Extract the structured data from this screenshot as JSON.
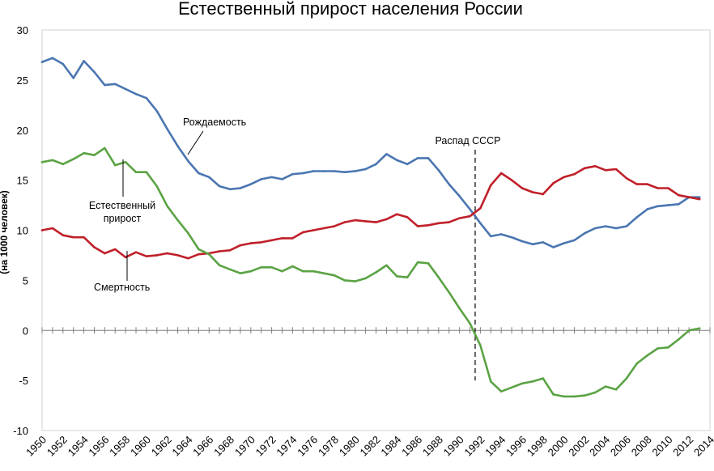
{
  "chart_data": {
    "type": "line",
    "title": "Естественный прирост населения России",
    "ylabel": "(на 1000 человек)",
    "xlim": [
      1950,
      2014
    ],
    "ylim": [
      -10,
      30
    ],
    "yticks": [
      "30",
      "25",
      "20",
      "15",
      "10",
      "5",
      "0",
      "-5",
      "-10"
    ],
    "ytick_values": [
      30,
      25,
      20,
      15,
      10,
      5,
      0,
      -5,
      -10
    ],
    "xticks": [
      "1950",
      "1952",
      "1954",
      "1956",
      "1958",
      "1960",
      "1962",
      "1964",
      "1966",
      "1968",
      "1970",
      "1972",
      "1974",
      "1976",
      "1978",
      "1980",
      "1982",
      "1984",
      "1986",
      "1988",
      "1990",
      "1992",
      "1994",
      "1996",
      "1998",
      "2000",
      "2002",
      "2004",
      "2006",
      "2008",
      "2010",
      "2012",
      "2014"
    ],
    "xtick_values": [
      1950,
      1952,
      1954,
      1956,
      1958,
      1960,
      1962,
      1964,
      1966,
      1968,
      1970,
      1972,
      1974,
      1976,
      1978,
      1980,
      1982,
      1984,
      1986,
      1988,
      1990,
      1992,
      1994,
      1996,
      1998,
      2000,
      2002,
      2004,
      2006,
      2008,
      2010,
      2012,
      2014
    ],
    "grid": false,
    "colors": {
      "birth": "#4a76b1",
      "death": "#c0202a",
      "natural": "#5ba344"
    },
    "x": [
      1950,
      1951,
      1952,
      1953,
      1954,
      1955,
      1956,
      1957,
      1958,
      1959,
      1960,
      1961,
      1962,
      1963,
      1964,
      1965,
      1966,
      1967,
      1968,
      1969,
      1970,
      1971,
      1972,
      1973,
      1974,
      1975,
      1976,
      1977,
      1978,
      1979,
      1980,
      1981,
      1982,
      1983,
      1984,
      1985,
      1986,
      1987,
      1988,
      1989,
      1990,
      1991,
      1992,
      1993,
      1994,
      1995,
      1996,
      1997,
      1998,
      1999,
      2000,
      2001,
      2002,
      2003,
      2004,
      2005,
      2006,
      2007,
      2008,
      2009,
      2010,
      2011,
      2012,
      2013
    ],
    "series": [
      {
        "key": "birth",
        "values": [
          26.8,
          27.2,
          26.6,
          25.2,
          26.9,
          25.8,
          24.5,
          24.6,
          24.1,
          23.6,
          23.2,
          21.9,
          20.1,
          18.4,
          16.9,
          15.7,
          15.3,
          14.4,
          14.1,
          14.2,
          14.6,
          15.1,
          15.3,
          15.1,
          15.6,
          15.7,
          15.9,
          15.9,
          15.9,
          15.8,
          15.9,
          16.1,
          16.6,
          17.6,
          17.0,
          16.6,
          17.2,
          17.2,
          16.0,
          14.6,
          13.4,
          12.1,
          10.7,
          9.4,
          9.6,
          9.3,
          8.9,
          8.6,
          8.8,
          8.3,
          8.7,
          9.0,
          9.7,
          10.2,
          10.4,
          10.2,
          10.4,
          11.3,
          12.1,
          12.4,
          12.5,
          12.6,
          13.3,
          13.3
        ]
      },
      {
        "key": "death",
        "values": [
          10.0,
          10.2,
          9.5,
          9.3,
          9.3,
          8.3,
          7.7,
          8.1,
          7.3,
          7.8,
          7.4,
          7.5,
          7.7,
          7.5,
          7.2,
          7.6,
          7.7,
          7.9,
          8.0,
          8.5,
          8.7,
          8.8,
          9.0,
          9.2,
          9.2,
          9.8,
          10.0,
          10.2,
          10.4,
          10.8,
          11.0,
          10.9,
          10.8,
          11.1,
          11.6,
          11.3,
          10.4,
          10.5,
          10.7,
          10.8,
          11.2,
          11.4,
          12.2,
          14.5,
          15.7,
          15.0,
          14.2,
          13.8,
          13.6,
          14.7,
          15.3,
          15.6,
          16.2,
          16.4,
          16.0,
          16.1,
          15.2,
          14.6,
          14.6,
          14.2,
          14.2,
          13.5,
          13.3,
          13.1
        ]
      },
      {
        "key": "natural",
        "values": [
          16.8,
          17.0,
          16.6,
          17.1,
          17.7,
          17.5,
          18.2,
          16.5,
          16.8,
          15.8,
          15.8,
          14.4,
          12.4,
          11.0,
          9.7,
          8.1,
          7.6,
          6.5,
          6.1,
          5.7,
          5.9,
          6.3,
          6.3,
          5.9,
          6.4,
          5.9,
          5.9,
          5.7,
          5.5,
          5.0,
          4.9,
          5.2,
          5.8,
          6.5,
          5.4,
          5.3,
          6.8,
          6.7,
          5.3,
          3.8,
          2.2,
          0.7,
          -1.5,
          -5.1,
          -6.1,
          -5.7,
          -5.3,
          -5.1,
          -4.8,
          -6.4,
          -6.6,
          -6.6,
          -6.5,
          -6.2,
          -5.6,
          -5.9,
          -4.8,
          -3.3,
          -2.5,
          -1.8,
          -1.7,
          -0.9,
          0.0,
          0.2
        ]
      }
    ],
    "annotations": {
      "birth_label": "Рождаемость",
      "natural_label_line1": "Естественный",
      "natural_label_line2": "прирост",
      "death_label": "Смертность",
      "event_label": "Распад СССР",
      "event_year": 1991.5
    }
  }
}
